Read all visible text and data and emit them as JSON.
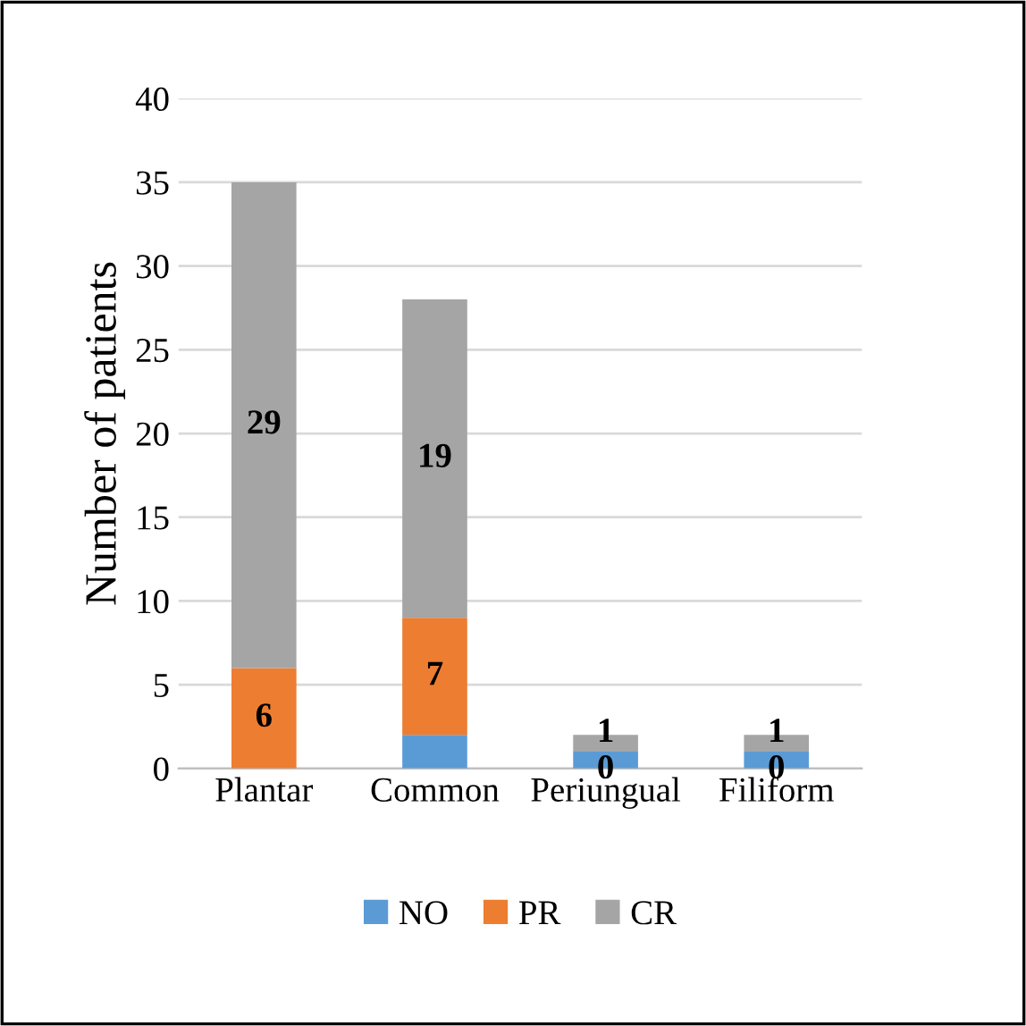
{
  "chart_data": {
    "type": "bar",
    "stacked": true,
    "ylabel": "Number of patients",
    "categories": [
      "Plantar",
      "Common",
      "Periungual",
      "Filiform"
    ],
    "series": [
      {
        "name": "NO",
        "color": "#5b9bd5",
        "values": [
          0,
          2,
          1,
          1
        ],
        "value_labels": [
          null,
          null,
          null,
          null
        ]
      },
      {
        "name": "PR",
        "color": "#ed7d31",
        "values": [
          6,
          7,
          0,
          0
        ],
        "value_labels": [
          "6",
          "7",
          "0",
          "0"
        ]
      },
      {
        "name": "CR",
        "color": "#a5a5a5",
        "values": [
          29,
          19,
          1,
          1
        ],
        "value_labels": [
          "29",
          "19",
          "1",
          "1"
        ]
      }
    ],
    "ylim": [
      0,
      40
    ],
    "yticks": [
      0,
      5,
      10,
      15,
      20,
      25,
      30,
      35,
      40
    ],
    "grid": "y",
    "legend": "bottom"
  }
}
